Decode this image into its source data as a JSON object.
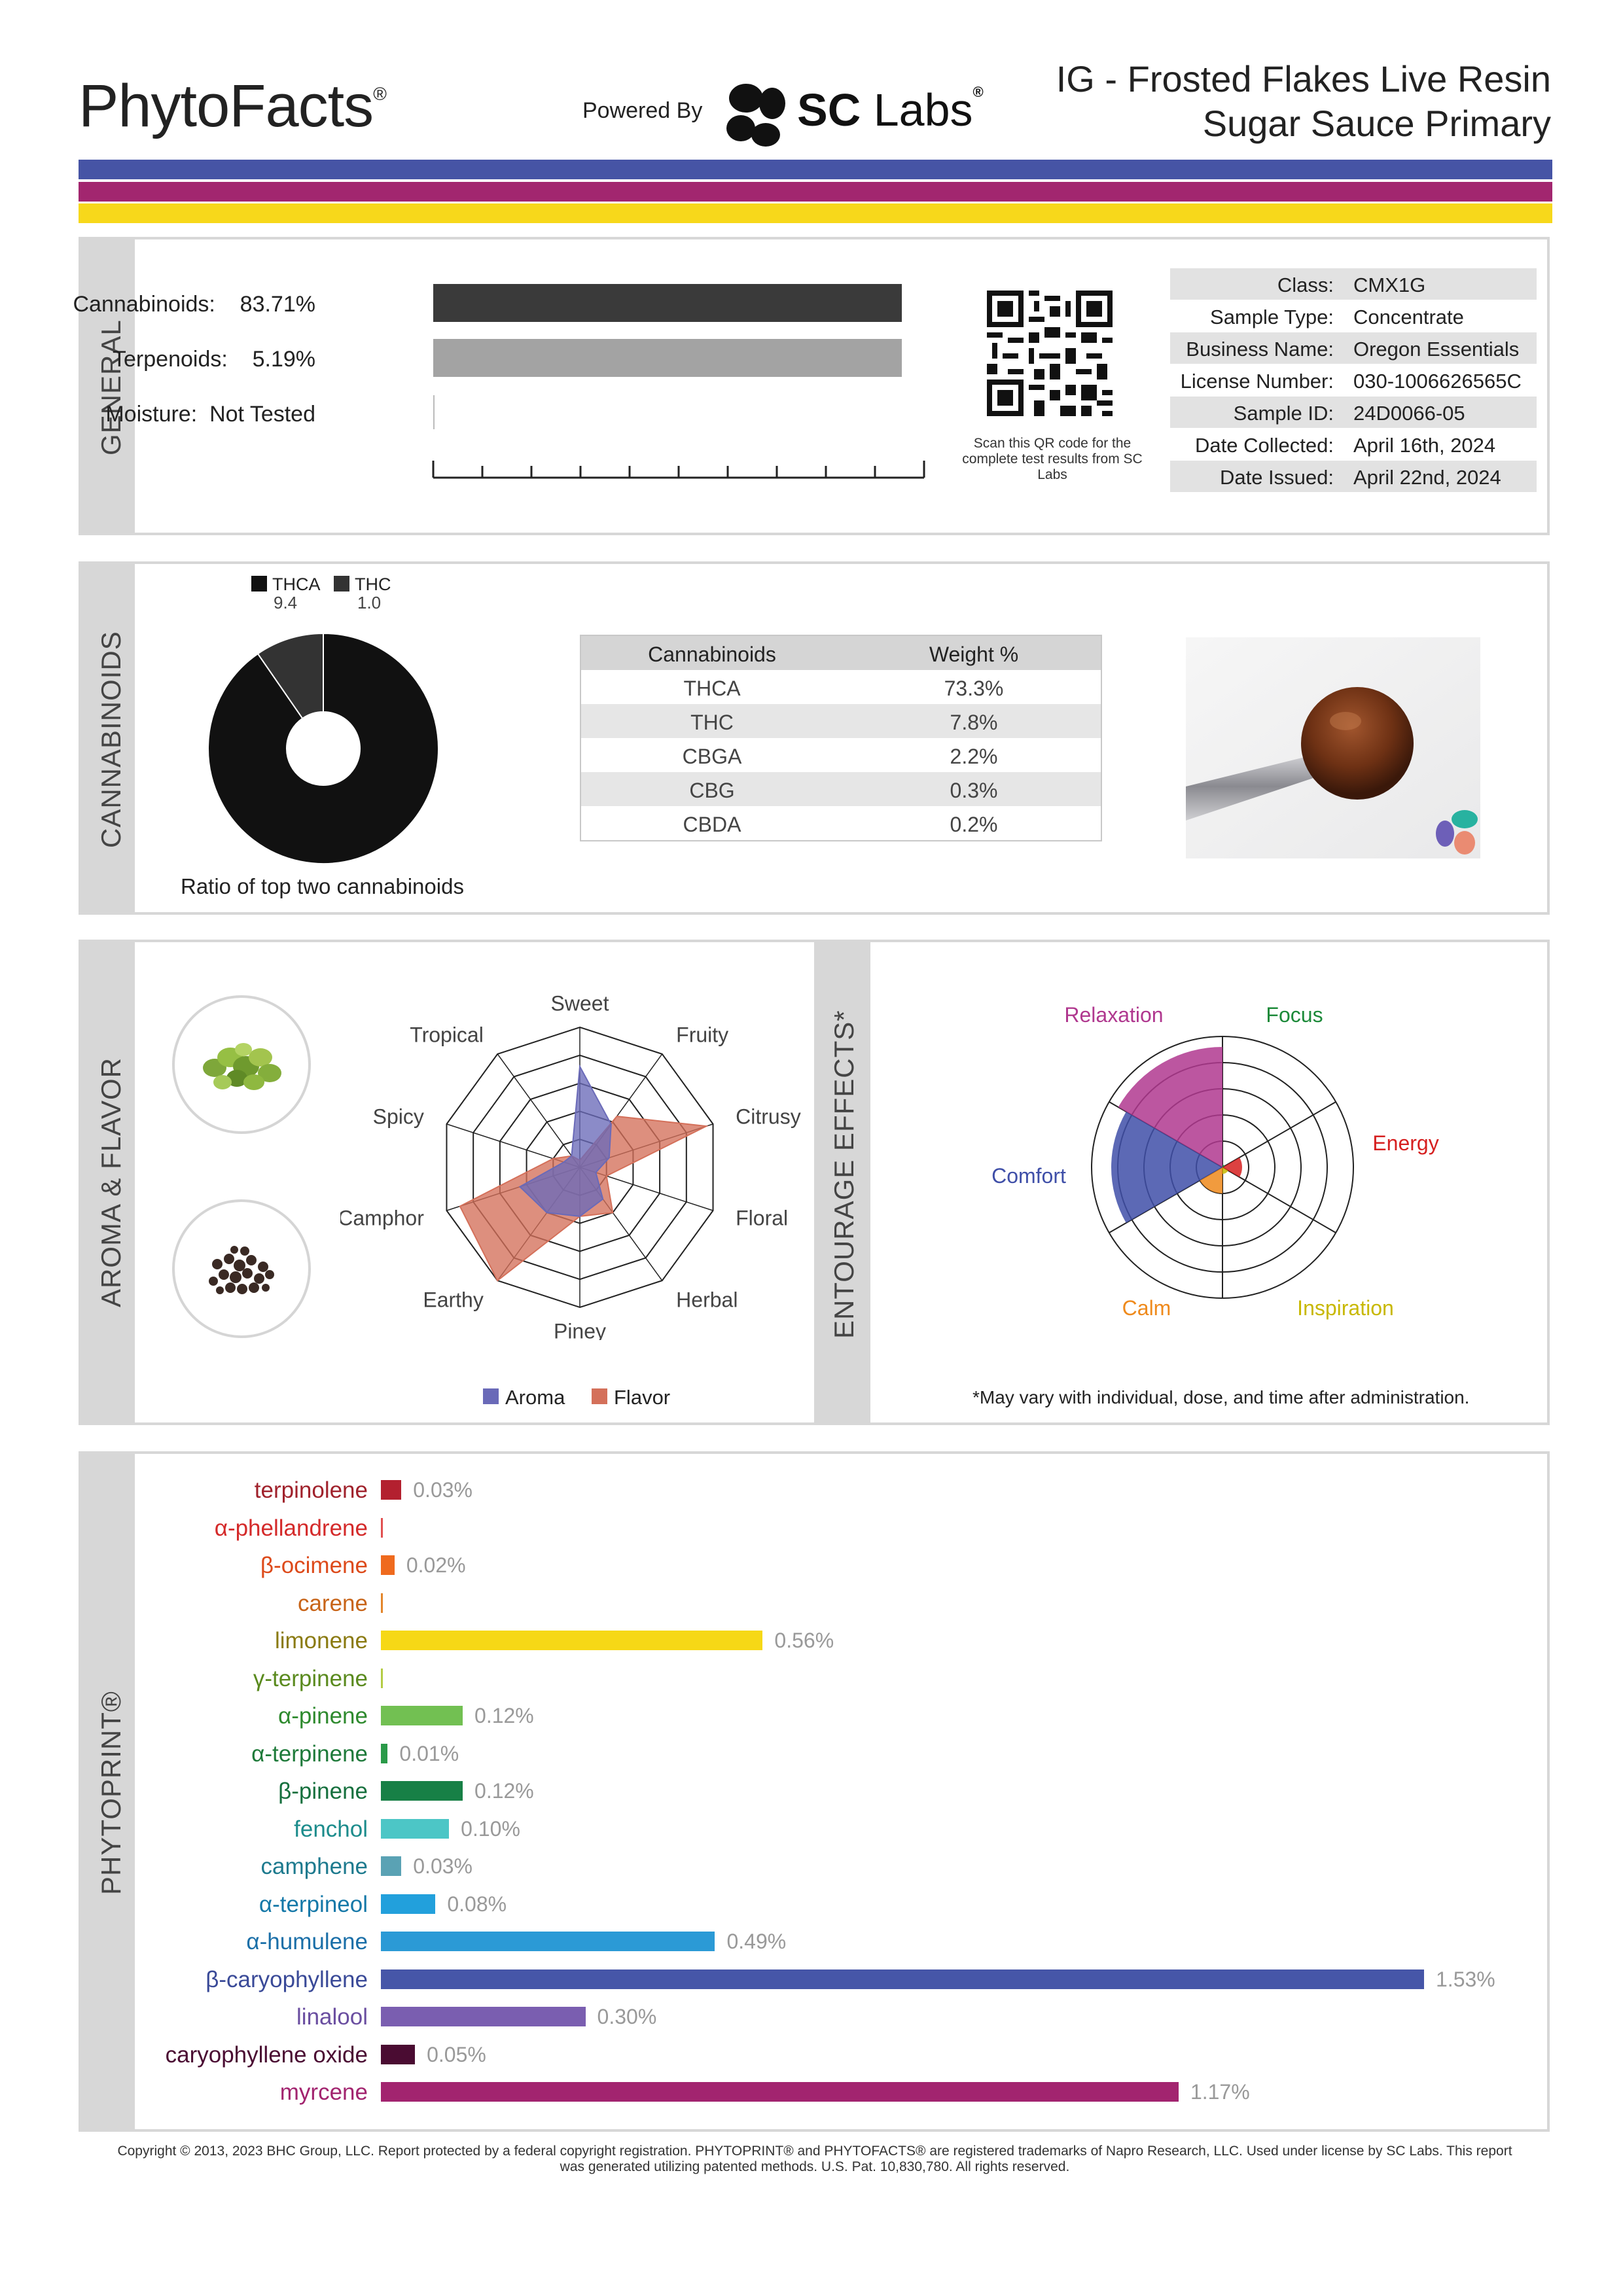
{
  "header": {
    "brand": "PhytoFacts",
    "brand_mark": "®",
    "powered_by": "Powered By",
    "lab_logo_bold": "SC",
    "lab_logo_light": "Labs",
    "lab_logo_mark": "®",
    "title_line1": "IG - Frosted Flakes Live Resin",
    "title_line2": "Sugar Sauce Primary",
    "stripe_colors": [
      "#4654a5",
      "#a2266f",
      "#f7d81b"
    ]
  },
  "general": {
    "section_label": "GENERAL",
    "rows": [
      {
        "label": "Cannabinoids:",
        "value": "83.71%",
        "level_percent": 83.71
      },
      {
        "label": "Terpenoids:",
        "value": "5.19%",
        "level_percent": 5.19
      },
      {
        "label": "Moisture:",
        "value": "Not Tested"
      }
    ],
    "qr_note": "Scan this QR code for the complete test results from SC Labs",
    "meta": [
      {
        "key": "Class:",
        "value": "CMX1G"
      },
      {
        "key": "Sample Type:",
        "value": "Concentrate"
      },
      {
        "key": "Business Name:",
        "value": "Oregon Essentials"
      },
      {
        "key": "License Number:",
        "value": "030-1006626565C"
      },
      {
        "key": "Sample ID:",
        "value": "24D0066-05"
      },
      {
        "key": "Date Collected:",
        "value": "April 16th, 2024"
      },
      {
        "key": "Date Issued:",
        "value": "April 22nd, 2024"
      }
    ]
  },
  "cannabinoids": {
    "section_label": "CANNABINOIDS",
    "legend": [
      {
        "name": "THCA",
        "value": "9.4",
        "color": "#111111"
      },
      {
        "name": "THC",
        "value": "1.0",
        "color": "#333333"
      }
    ],
    "donut_caption": "Ratio of top two cannabinoids",
    "table_headers": [
      "Cannabinoids",
      "Weight %"
    ],
    "table_rows": [
      [
        "THCA",
        "73.3%"
      ],
      [
        "THC",
        "7.8%"
      ],
      [
        "CBGA",
        "2.2%"
      ],
      [
        "CBG",
        "0.3%"
      ],
      [
        "CBDA",
        "0.2%"
      ]
    ]
  },
  "aroma": {
    "section_label": "AROMA & FLAVOR",
    "axes": [
      "Sweet",
      "Fruity",
      "Citrusy",
      "Floral",
      "Herbal",
      "Piney",
      "Earthy",
      "Camphor",
      "Spicy",
      "Tropical"
    ],
    "aroma_color": "#6a6ab8",
    "flavor_color": "#d4705a",
    "aroma_values": [
      0.72,
      0.38,
      0.22,
      0.12,
      0.28,
      0.35,
      0.4,
      0.45,
      0.12,
      0.1
    ],
    "flavor_values": [
      0.05,
      0.45,
      0.95,
      0.2,
      0.4,
      0.35,
      1.0,
      0.9,
      0.2,
      0.1
    ],
    "legend_aroma": "Aroma",
    "legend_flavor": "Flavor"
  },
  "entourage": {
    "section_label": "ENTOURAGE EFFECTS*",
    "effects": [
      {
        "name": "Relaxation",
        "color": "#b0388f",
        "level": 0.92
      },
      {
        "name": "Focus",
        "color": "#1d8a3a",
        "level": 0.02
      },
      {
        "name": "Energy",
        "color": "#d62020",
        "level": 0.15
      },
      {
        "name": "Inspiration",
        "color": "#c8b800",
        "level": 0.05
      },
      {
        "name": "Calm",
        "color": "#ef8a1c",
        "level": 0.2
      },
      {
        "name": "Comfort",
        "color": "#3f4fa8",
        "level": 0.85
      }
    ],
    "note": "*May vary with individual, dose, and time after administration."
  },
  "phytoprint": {
    "section_label": "PHYTOPRINT®",
    "terpenes": [
      {
        "name": "terpinolene",
        "value": 0.03,
        "label": "0.03%",
        "color": "#b3202f",
        "text_color": "#a0222c"
      },
      {
        "name": "α-phellandrene",
        "value": 0.0,
        "label": "",
        "color": "#e15050",
        "text_color": "#d42a2a"
      },
      {
        "name": "β-ocimene",
        "value": 0.02,
        "label": "0.02%",
        "color": "#ef6a1e",
        "text_color": "#dd4a1a"
      },
      {
        "name": "carene",
        "value": 0.0,
        "label": "",
        "color": "#e4852a",
        "text_color": "#c86418"
      },
      {
        "name": "limonene",
        "value": 0.56,
        "label": "0.56%",
        "color": "#f6d816",
        "text_color": "#8a7a10"
      },
      {
        "name": "γ-terpinene",
        "value": 0.0,
        "label": "",
        "color": "#b4cc44",
        "text_color": "#5a8a1e"
      },
      {
        "name": "α-pinene",
        "value": 0.12,
        "label": "0.12%",
        "color": "#72c052",
        "text_color": "#2e8a2e"
      },
      {
        "name": "α-terpinene",
        "value": 0.01,
        "label": "0.01%",
        "color": "#2a9a48",
        "text_color": "#1e7a3a"
      },
      {
        "name": "β-pinene",
        "value": 0.12,
        "label": "0.12%",
        "color": "#178046",
        "text_color": "#16703e"
      },
      {
        "name": "fenchol",
        "value": 0.1,
        "label": "0.10%",
        "color": "#4cc6c6",
        "text_color": "#1c8c8c"
      },
      {
        "name": "camphene",
        "value": 0.03,
        "label": "0.03%",
        "color": "#5aa2b4",
        "text_color": "#1d7a8e"
      },
      {
        "name": "α-terpineol",
        "value": 0.08,
        "label": "0.08%",
        "color": "#22a0dc",
        "text_color": "#1478a8"
      },
      {
        "name": "α-humulene",
        "value": 0.49,
        "label": "0.49%",
        "color": "#2b9ad6",
        "text_color": "#1a6fa8"
      },
      {
        "name": "β-caryophyllene",
        "value": 1.53,
        "label": "1.53%",
        "color": "#4656a8",
        "text_color": "#3a4a98"
      },
      {
        "name": "linalool",
        "value": 0.3,
        "label": "0.30%",
        "color": "#7a5eb0",
        "text_color": "#6a4ea0"
      },
      {
        "name": "caryophyllene oxide",
        "value": 0.05,
        "label": "0.05%",
        "color": "#4a0c32",
        "text_color": "#4a0c32"
      },
      {
        "name": "myrcene",
        "value": 1.17,
        "label": "1.17%",
        "color": "#a2246f",
        "text_color": "#a2246f"
      }
    ]
  },
  "footer": {
    "line1": "Copyright © 2013, 2023 BHC Group, LLC. Report protected by a federal copyright registration. PHYTOPRINT® and PHYTOFACTS® are registered trademarks of Napro Research, LLC. Used under license by SC Labs. This report",
    "line2": "was generated utilizing patented methods. U.S. Pat. 10,830,780. All rights reserved."
  }
}
